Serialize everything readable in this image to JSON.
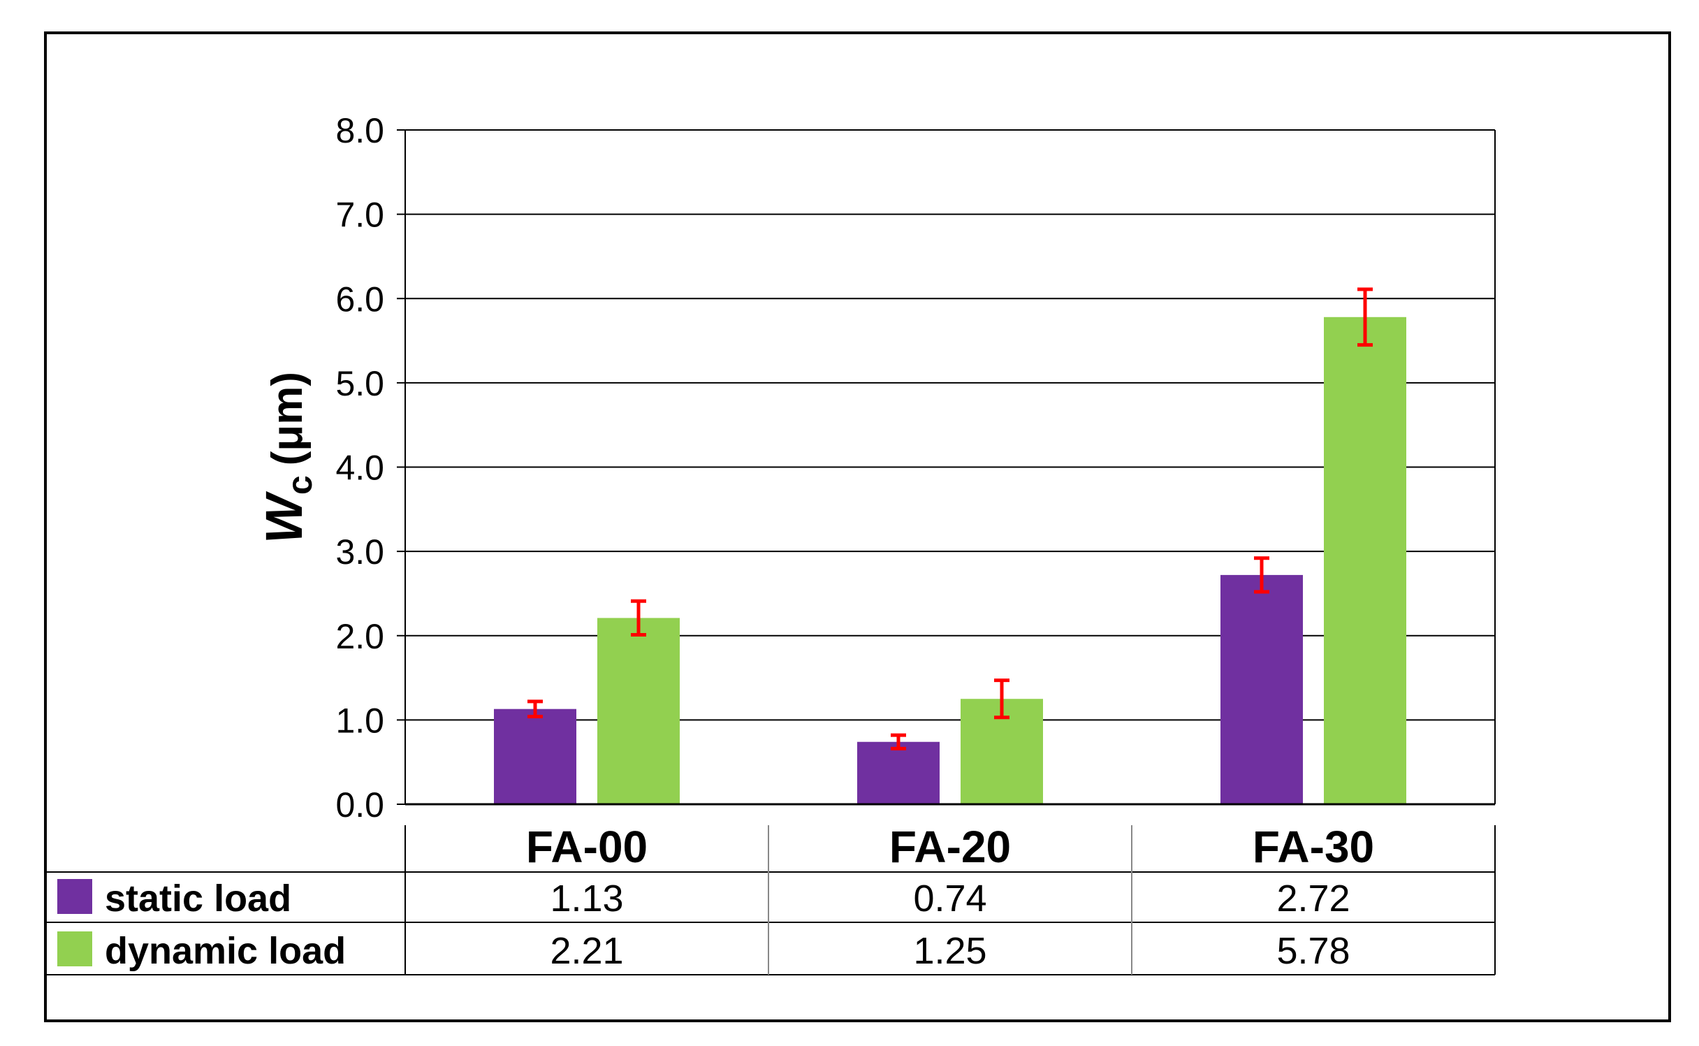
{
  "chart_data": {
    "type": "bar",
    "title": "",
    "xlabel": "",
    "ylabel": {
      "symbol": "W",
      "subscript": "c",
      "unit": "(μm)"
    },
    "ylim": [
      0,
      8
    ],
    "yticks": [
      "0.0",
      "1.0",
      "2.0",
      "3.0",
      "4.0",
      "5.0",
      "6.0",
      "7.0",
      "8.0"
    ],
    "categories": [
      "FA-00",
      "FA-20",
      "FA-30"
    ],
    "series": [
      {
        "name": "static load",
        "color": "#7030a0",
        "values": [
          1.13,
          0.74,
          2.72
        ],
        "labels": [
          "1.13",
          "0.74",
          "2.72"
        ],
        "error": [
          0.09,
          0.08,
          0.2
        ]
      },
      {
        "name": "dynamic load",
        "color": "#92d050",
        "values": [
          2.21,
          1.25,
          5.78
        ],
        "labels": [
          "2.21",
          "1.25",
          "5.78"
        ],
        "error": [
          0.2,
          0.22,
          0.33
        ]
      }
    ],
    "error_bar_color": "#ff0000",
    "grid": true,
    "legend": "data-table"
  }
}
